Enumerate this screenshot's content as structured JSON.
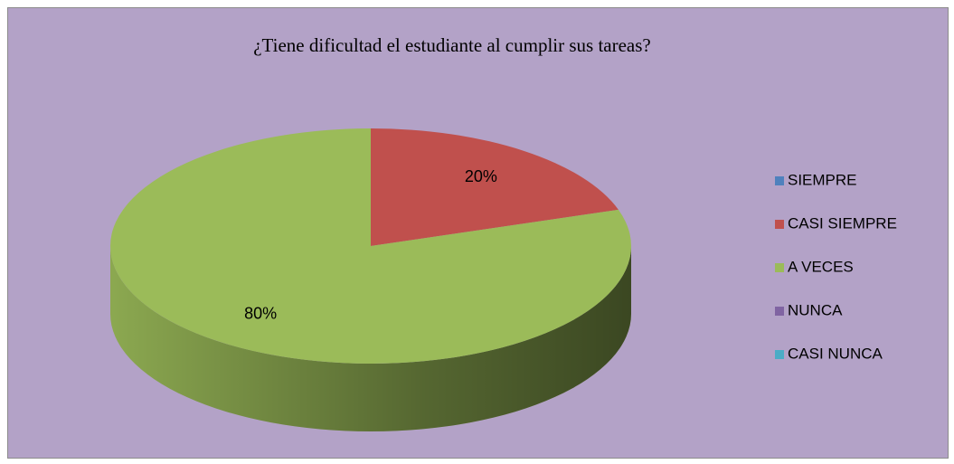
{
  "chart_data": {
    "type": "pie3d",
    "title": "¿Tiene dificultad el estudiante al cumplir sus tareas?",
    "categories": [
      "SIEMPRE",
      "CASI SIEMPRE",
      "A VECES",
      "NUNCA",
      "CASI NUNCA"
    ],
    "values": [
      0,
      20,
      80,
      0,
      0
    ],
    "value_labels": [
      null,
      "20%",
      "80%",
      null,
      null
    ],
    "colors": [
      "#4f81bd",
      "#c0504d",
      "#9bbb59",
      "#8064a2",
      "#4bacc6"
    ],
    "legend": "right"
  }
}
